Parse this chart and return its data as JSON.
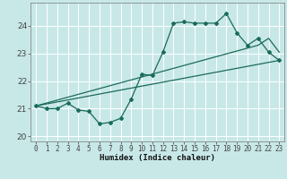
{
  "xlabel": "Humidex (Indice chaleur)",
  "bg_color": "#c8e8e8",
  "line_color": "#1a6b5a",
  "grid_color": "#b0d8d8",
  "xlim": [
    -0.5,
    23.5
  ],
  "ylim": [
    19.8,
    24.85
  ],
  "yticks": [
    20,
    21,
    22,
    23,
    24
  ],
  "xticks": [
    0,
    1,
    2,
    3,
    4,
    5,
    6,
    7,
    8,
    9,
    10,
    11,
    12,
    13,
    14,
    15,
    16,
    17,
    18,
    19,
    20,
    21,
    22,
    23
  ],
  "line1_x": [
    0,
    1,
    2,
    3,
    4,
    5,
    6,
    7,
    8,
    9,
    10,
    11,
    12,
    13,
    14,
    15,
    16,
    17,
    18,
    19,
    20,
    21,
    22,
    23
  ],
  "line1_y": [
    21.1,
    21.0,
    21.0,
    21.2,
    20.95,
    20.9,
    20.45,
    20.5,
    20.65,
    21.35,
    22.25,
    22.2,
    23.05,
    24.1,
    24.15,
    24.1,
    24.1,
    24.1,
    24.45,
    23.75,
    23.3,
    23.55,
    23.05,
    22.75
  ],
  "line2_x": [
    0,
    23
  ],
  "line2_y": [
    21.1,
    22.75
  ],
  "line3_x": [
    0,
    21,
    22,
    23
  ],
  "line3_y": [
    21.1,
    23.3,
    23.55,
    23.05
  ]
}
